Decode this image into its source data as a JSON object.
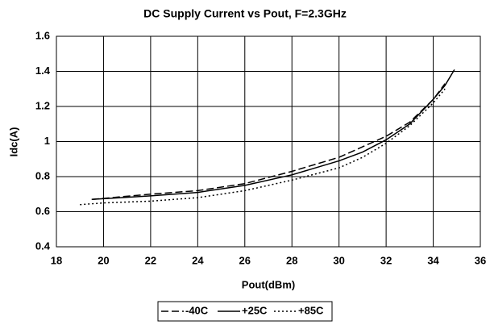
{
  "chart_data": {
    "type": "line",
    "title": "DC Supply Current vs Pout, F=2.3GHz",
    "x_label": "Pout(dBm)",
    "y_label": "Idc(A)",
    "xlim": [
      18,
      36
    ],
    "xticks": [
      18,
      20,
      22,
      24,
      26,
      28,
      30,
      32,
      34,
      36
    ],
    "ylim": [
      0.4,
      1.6
    ],
    "yticks": [
      0.4,
      0.6,
      0.8,
      1,
      1.2,
      1.4,
      1.6
    ],
    "grid": true,
    "legend": "bottom",
    "series": [
      {
        "name": "-40C",
        "color": "#000000",
        "style": "dashed",
        "x": [
          19.5,
          22,
          24,
          26,
          28,
          30,
          32,
          33,
          34,
          34.5
        ],
        "values": [
          0.67,
          0.7,
          0.72,
          0.76,
          0.83,
          0.91,
          1.03,
          1.11,
          1.24,
          1.33
        ]
      },
      {
        "name": "+25C",
        "color": "#000000",
        "style": "solid",
        "x": [
          19.5,
          22,
          24,
          26,
          28,
          30,
          31,
          32,
          33,
          34,
          34.5,
          34.9
        ],
        "values": [
          0.67,
          0.69,
          0.71,
          0.75,
          0.81,
          0.89,
          0.94,
          1.01,
          1.1,
          1.24,
          1.32,
          1.41
        ]
      },
      {
        "name": "+85C",
        "color": "#000000",
        "style": "dotted",
        "x": [
          19,
          20,
          22,
          24,
          26,
          28,
          30,
          31,
          32,
          33,
          34,
          34.5
        ],
        "values": [
          0.64,
          0.65,
          0.66,
          0.68,
          0.72,
          0.78,
          0.85,
          0.91,
          0.99,
          1.09,
          1.22,
          1.3
        ]
      }
    ]
  }
}
